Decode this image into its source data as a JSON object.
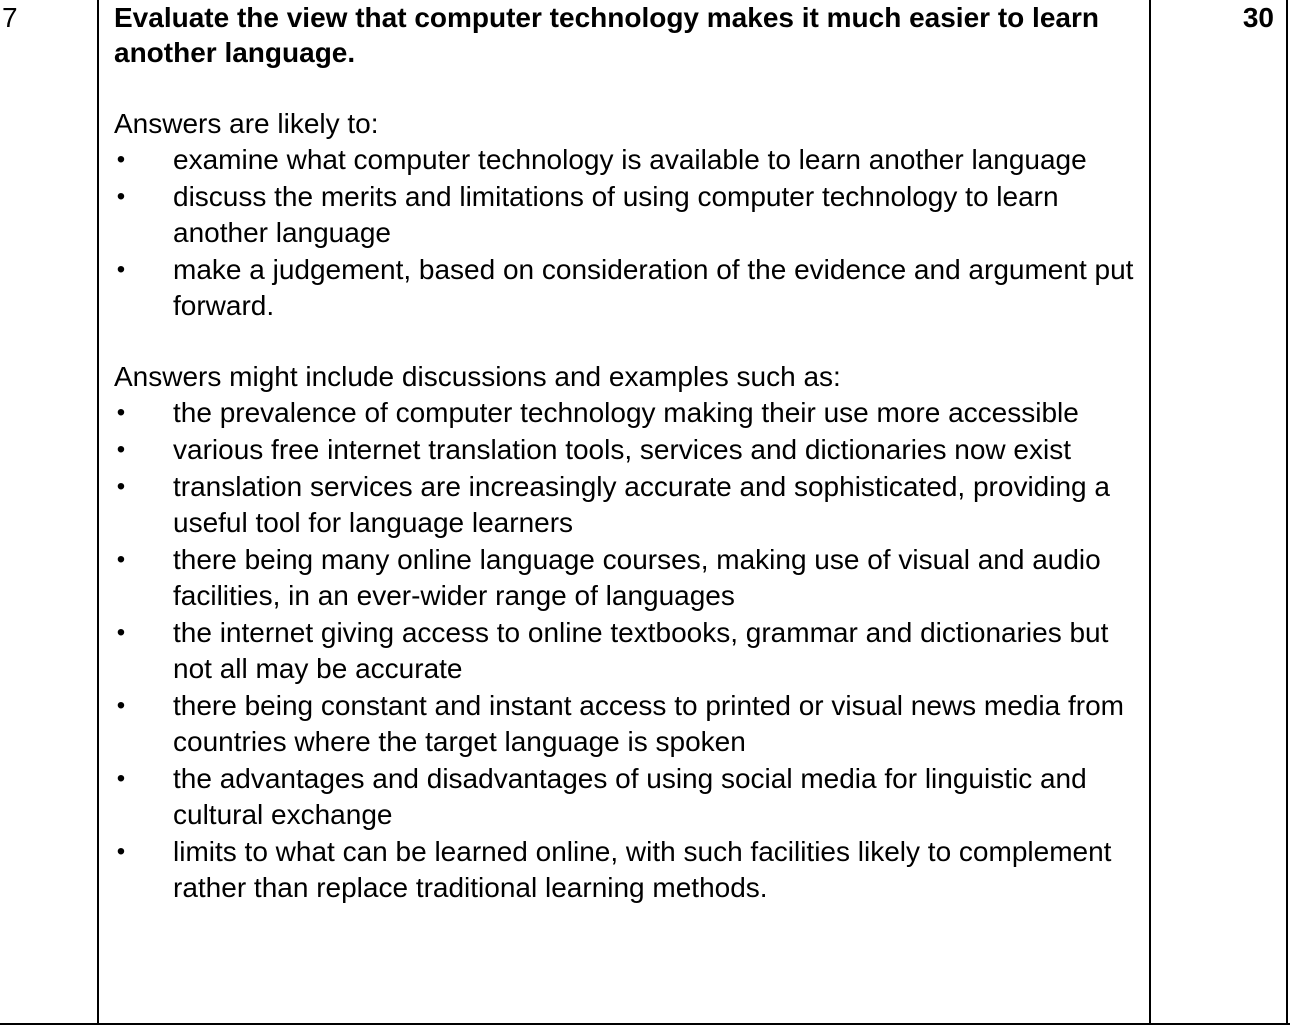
{
  "question_number": "7",
  "marks": "30",
  "question": "Evaluate the view that computer technology makes it much easier to learn another language.",
  "likely": {
    "intro": "Answers are likely to:",
    "bullets": [
      "examine what computer technology is available to learn another language",
      "discuss the merits and limitations of using computer technology to learn another language",
      "make a judgement, based on consideration of the evidence and argument put forward."
    ]
  },
  "might_include": {
    "intro": "Answers might include discussions and examples such as:",
    "bullets": [
      "the prevalence of computer technology making their use more accessible",
      "various free internet translation tools, services and dictionaries now exist",
      "translation services are increasingly accurate and sophisticated, providing a useful tool for language learners",
      "there being many online language courses, making use of visual and audio facilities, in an ever-wider range of languages",
      "the internet giving access to online textbooks, grammar and dictionaries but not all may be accurate",
      "there being constant and instant access to printed or visual news media from countries where the target language is spoken",
      "the advantages and disadvantages of using social media for linguistic and cultural exchange",
      "limits to what can be learned online, with such facilities likely to complement rather than replace traditional learning methods."
    ]
  },
  "bullet_glyph": "•"
}
